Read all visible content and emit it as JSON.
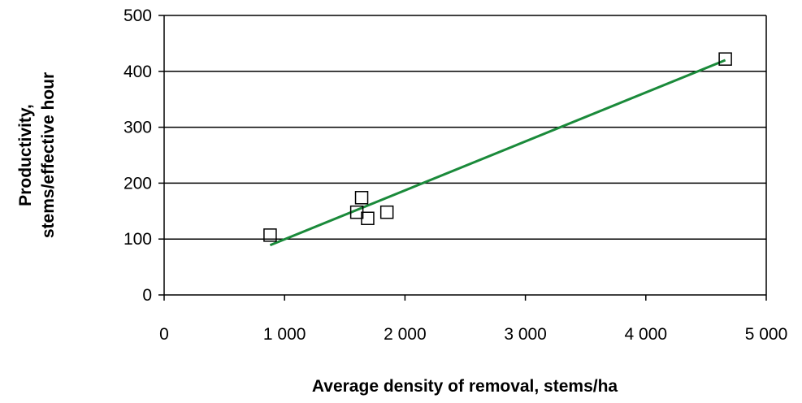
{
  "chart_data": {
    "type": "scatter",
    "xlabel": "Average density of removal, stems/ha",
    "ylabel_lines": [
      "Productivity,",
      "stems/effective hour"
    ],
    "xlim": [
      0,
      5000
    ],
    "ylim": [
      0,
      500
    ],
    "x_ticks": [
      0,
      1000,
      2000,
      3000,
      4000,
      5000
    ],
    "x_tick_labels": [
      "0",
      "1 000",
      "2 000",
      "3 000",
      "4 000",
      "5 000"
    ],
    "y_ticks": [
      0,
      100,
      200,
      300,
      400,
      500
    ],
    "y_tick_labels": [
      "0",
      "100",
      "200",
      "300",
      "400",
      "500"
    ],
    "grid": "horizontal",
    "series": [
      {
        "marker": "square-open",
        "points": [
          {
            "x": 880,
            "y": 107
          },
          {
            "x": 1600,
            "y": 148
          },
          {
            "x": 1640,
            "y": 174
          },
          {
            "x": 1690,
            "y": 137
          },
          {
            "x": 1850,
            "y": 148
          },
          {
            "x": 4660,
            "y": 422
          }
        ]
      }
    ],
    "trendline": {
      "color": "#1a8a3a",
      "from": {
        "x": 880,
        "y": 89
      },
      "to": {
        "x": 4660,
        "y": 420
      }
    }
  }
}
